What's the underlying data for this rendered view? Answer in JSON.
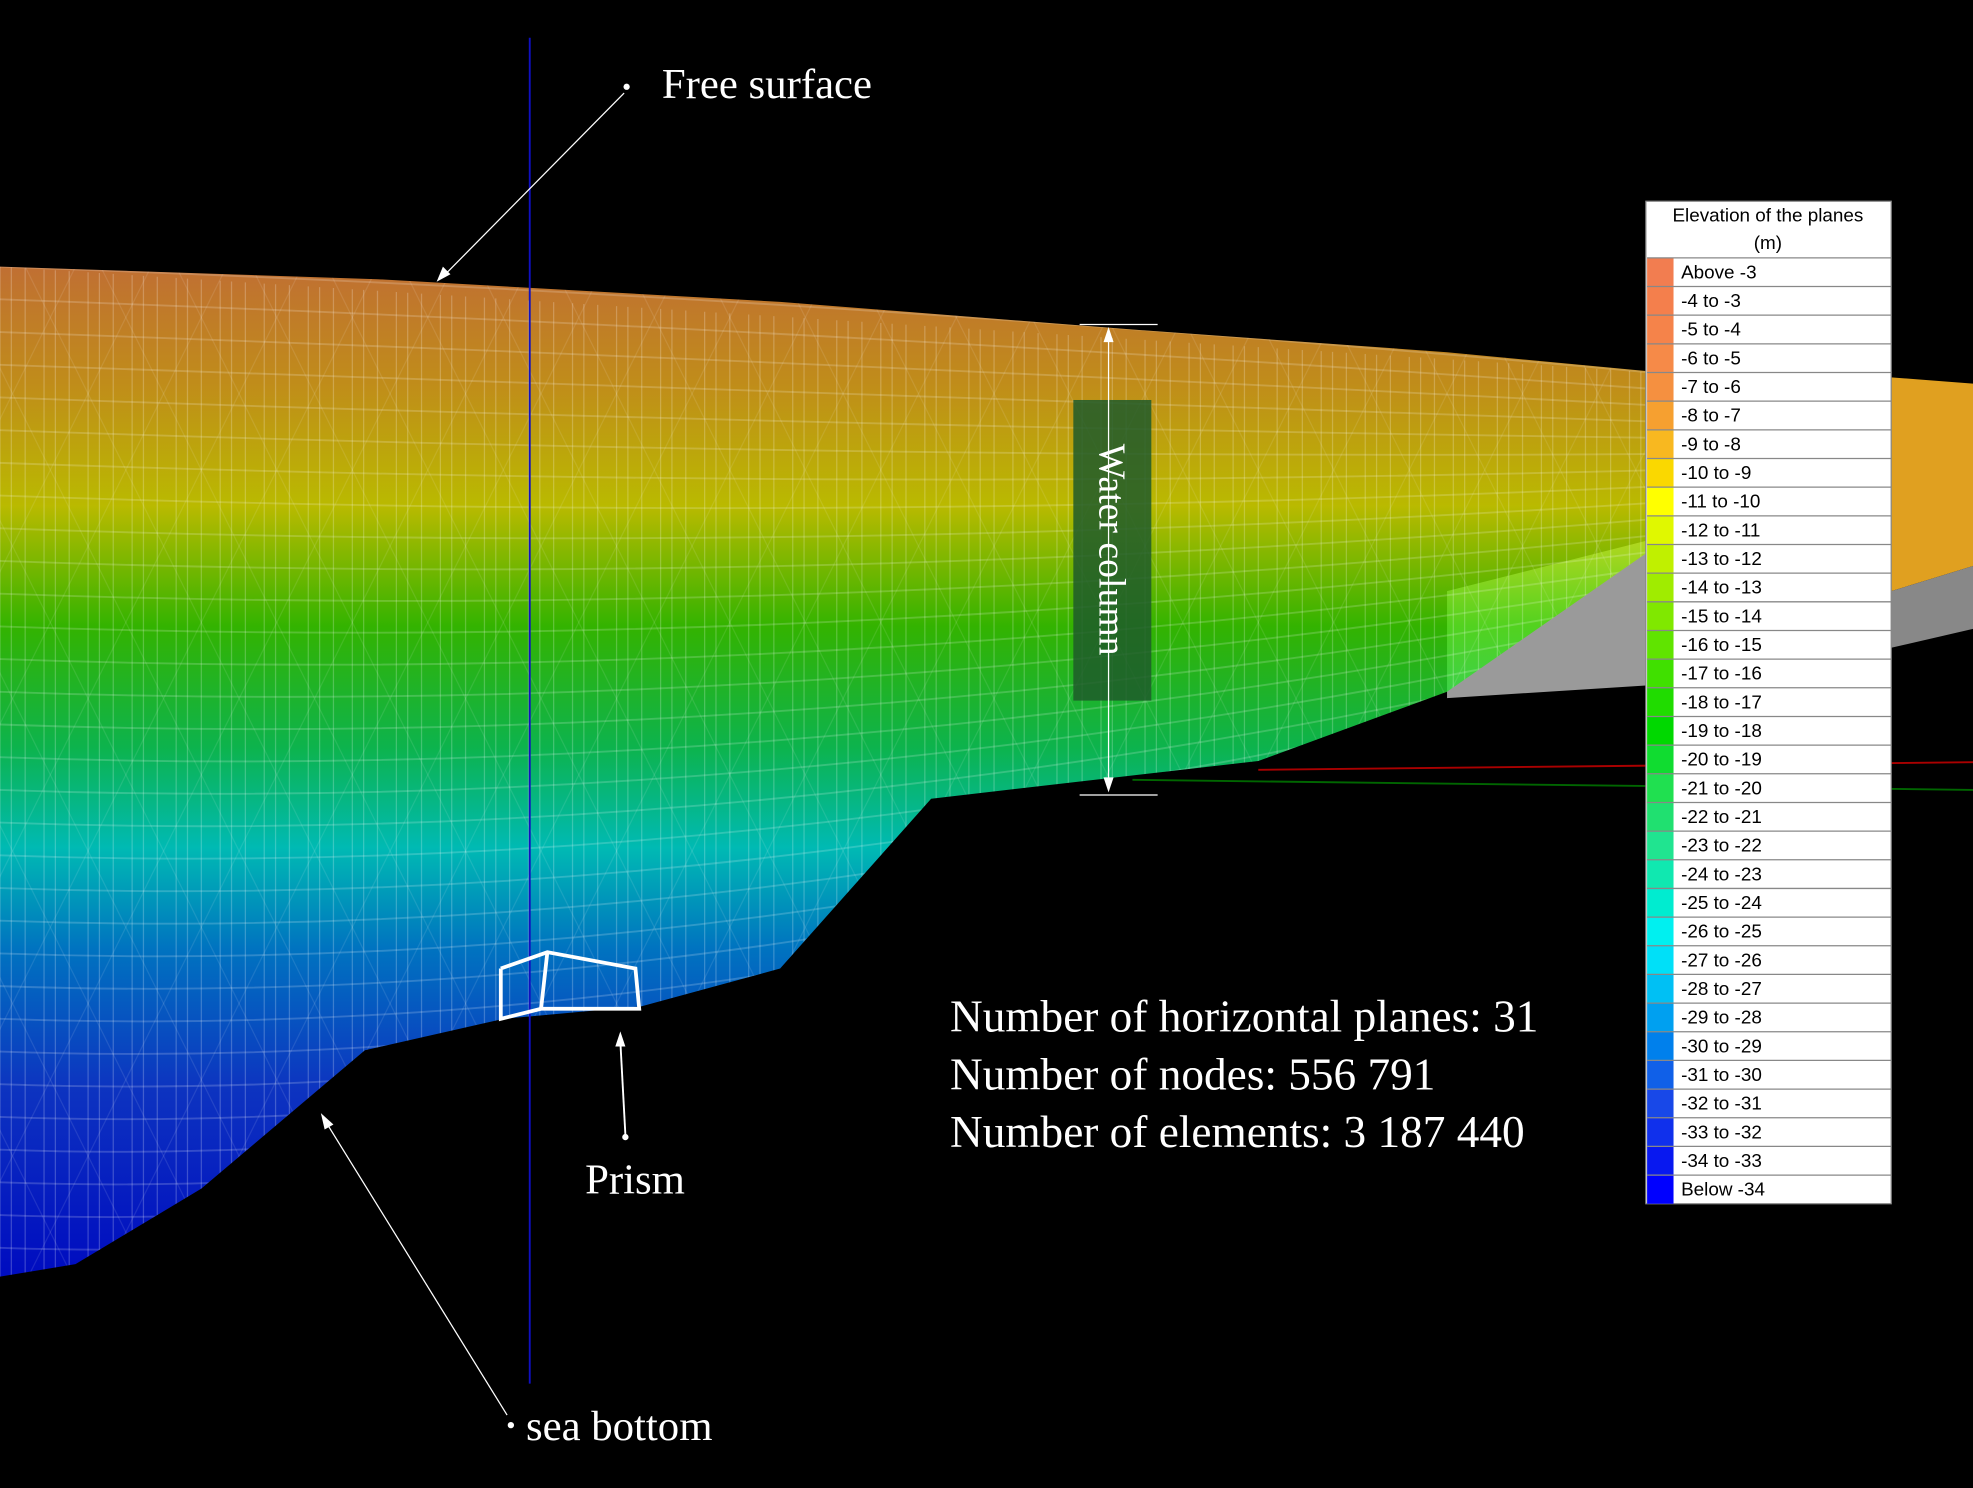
{
  "annotations": {
    "free_surface": "Free surface",
    "water_column": "Water column",
    "prism": "Prism",
    "sea_bottom": "sea bottom"
  },
  "stats": [
    "Number of horizontal planes: 31",
    "Number of nodes: 556 791",
    "Number of elements: 3 187 440"
  ],
  "legend": {
    "title": [
      "Elevation of the planes",
      "(m)"
    ],
    "items": [
      {
        "label": "Above -3",
        "color": "#f27d50"
      },
      {
        "label": "-4 to -3",
        "color": "#f47f4c"
      },
      {
        "label": "-5 to -4",
        "color": "#f5834a"
      },
      {
        "label": "-6 to -5",
        "color": "#f68a48"
      },
      {
        "label": "-7 to -6",
        "color": "#f59040"
      },
      {
        "label": "-8 to -7",
        "color": "#f6a030"
      },
      {
        "label": "-9 to -8",
        "color": "#f8b820"
      },
      {
        "label": "-10 to -9",
        "color": "#fad800"
      },
      {
        "label": "-11 to -10",
        "color": "#ffff00"
      },
      {
        "label": "-12 to -11",
        "color": "#e0f800"
      },
      {
        "label": "-13 to -12",
        "color": "#c0f000"
      },
      {
        "label": "-14 to -13",
        "color": "#a0ec00"
      },
      {
        "label": "-15 to -14",
        "color": "#80e800"
      },
      {
        "label": "-16 to -15",
        "color": "#60e400"
      },
      {
        "label": "-17 to -16",
        "color": "#40e000"
      },
      {
        "label": "-18 to -17",
        "color": "#20dc00"
      },
      {
        "label": "-19 to -18",
        "color": "#00d800"
      },
      {
        "label": "-20 to -19",
        "color": "#10dc30"
      },
      {
        "label": "-21 to -20",
        "color": "#20e050"
      },
      {
        "label": "-22 to -21",
        "color": "#20e070"
      },
      {
        "label": "-23 to -22",
        "color": "#20e490"
      },
      {
        "label": "-24 to -23",
        "color": "#10e8b0"
      },
      {
        "label": "-25 to -24",
        "color": "#00ecd0"
      },
      {
        "label": "-26 to -25",
        "color": "#00f0f0"
      },
      {
        "label": "-27 to -26",
        "color": "#00e0f8"
      },
      {
        "label": "-28 to -27",
        "color": "#00c0f4"
      },
      {
        "label": "-29 to -28",
        "color": "#00a0f0"
      },
      {
        "label": "-30 to -29",
        "color": "#0080ec"
      },
      {
        "label": "-31 to -30",
        "color": "#1060e8"
      },
      {
        "label": "-32 to -31",
        "color": "#1848e8"
      },
      {
        "label": "-33 to -32",
        "color": "#1030ec"
      },
      {
        "label": "-34 to -33",
        "color": "#0818f0"
      },
      {
        "label": "Below -34",
        "color": "#0000ff"
      }
    ]
  }
}
